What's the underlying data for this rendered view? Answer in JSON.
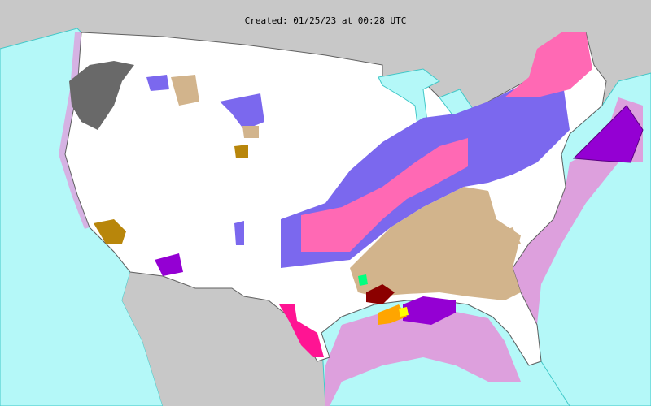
{
  "header": {
    "title": "Created: 01/25/23 at 00:28 UTC"
  },
  "colors": {
    "foreign_land": "#c8c8c8",
    "us_land": "#ffffff",
    "marine_zone": "#b4f8f8",
    "zone_border": "#40c8c8",
    "county_border": "#a0a0a0",
    "winter_storm_warning": "#ff69b4",
    "winter_weather_advisory": "#7b68ee",
    "wind_advisory": "#d2b48c",
    "gale_warning": "#dda0dd",
    "storm_warning": "#9400d3",
    "dense_fog_or_freeze": "#696969",
    "high_wind": "#b8860b",
    "tornado_watch": "#ffff00",
    "severe_storm": "#ffa500",
    "flood": "#8b0000",
    "flash_flood_watch": "#00ff7f",
    "red_flag": "#ff1493",
    "tornado_warning_pink": "#ffc0cb"
  }
}
